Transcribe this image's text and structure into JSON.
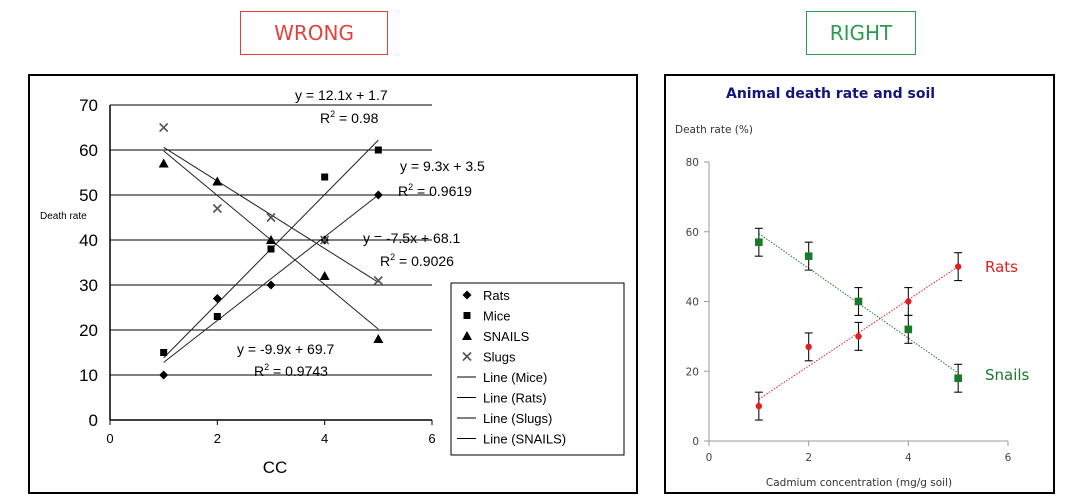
{
  "labels": {
    "wrong": "WRONG",
    "right": "RIGHT"
  },
  "colors": {
    "wrong": "#e0433d",
    "right": "#2e9a4e",
    "rats_red": "#e02020",
    "snails_green": "#1a7a2a",
    "title_navy": "#14147a"
  },
  "chart_data": [
    {
      "type": "scatter",
      "title": "",
      "xlabel": "CC",
      "ylabel": "Death rate",
      "xlim": [
        0,
        6
      ],
      "ylim": [
        0,
        70
      ],
      "x_ticks": [
        "0",
        "2",
        "4",
        "6"
      ],
      "y_ticks": [
        "0",
        "10",
        "20",
        "30",
        "40",
        "50",
        "60",
        "70"
      ],
      "grid": "horizontal",
      "legend_position": "bottom-right",
      "series": [
        {
          "name": "Rats",
          "marker": "diamond",
          "x": [
            1,
            2,
            3,
            4,
            5
          ],
          "y": [
            10,
            27,
            30,
            40,
            50
          ]
        },
        {
          "name": "Mice",
          "marker": "square",
          "x": [
            1,
            2,
            3,
            4,
            5
          ],
          "y": [
            15,
            23,
            38,
            54,
            60
          ]
        },
        {
          "name": "SNAILS",
          "marker": "triangle",
          "x": [
            1,
            2,
            3,
            4,
            5
          ],
          "y": [
            57,
            53,
            40,
            32,
            18
          ]
        },
        {
          "name": "Slugs",
          "marker": "x",
          "x": [
            1,
            2,
            3,
            4,
            5
          ],
          "y": [
            65,
            47,
            45,
            40,
            31
          ]
        }
      ],
      "trendlines": [
        {
          "name": "Line (Mice)",
          "slope": 12.1,
          "intercept": 1.7
        },
        {
          "name": "Line (Rats)",
          "slope": 9.3,
          "intercept": 3.5
        },
        {
          "name": "Line (Slugs)",
          "slope": -7.5,
          "intercept": 68.1
        },
        {
          "name": "Line (SNAILS)",
          "slope": -9.9,
          "intercept": 69.7
        }
      ],
      "annotations": [
        {
          "eq": "y = 12.1x + 1.7",
          "r2": "0.98"
        },
        {
          "eq": "y = 9.3x + 3.5",
          "r2": "0.9619"
        },
        {
          "eq": "y = -7.5x + 68.1",
          "r2": "0.9026"
        },
        {
          "eq": "y = -9.9x + 69.7",
          "r2": "0.9743"
        }
      ],
      "r2_prefix": "R",
      "r2_suffix": " = "
    },
    {
      "type": "scatter",
      "title": "Animal death rate and soil",
      "xlabel": "Cadmium concentration (mg/g soil)",
      "ylabel": "Death rate (%)",
      "xlim": [
        0,
        6
      ],
      "ylim": [
        0,
        80
      ],
      "x_ticks": [
        "0",
        "2",
        "4",
        "6"
      ],
      "y_ticks": [
        "0",
        "20",
        "40",
        "60",
        "80"
      ],
      "grid": "none",
      "series": [
        {
          "name": "Rats",
          "color": "#e02020",
          "marker": "circle",
          "x": [
            1,
            2,
            3,
            4,
            5
          ],
          "y": [
            10,
            27,
            30,
            40,
            50
          ],
          "error": 4,
          "fit": [
            1,
            5,
            12,
            50
          ]
        },
        {
          "name": "Snails",
          "color": "#1a7a2a",
          "marker": "square",
          "x": [
            1,
            2,
            3,
            4,
            5
          ],
          "y": [
            57,
            53,
            40,
            32,
            18
          ],
          "error": 4,
          "fit": [
            1,
            5,
            59.5,
            19.5
          ]
        }
      ]
    }
  ]
}
